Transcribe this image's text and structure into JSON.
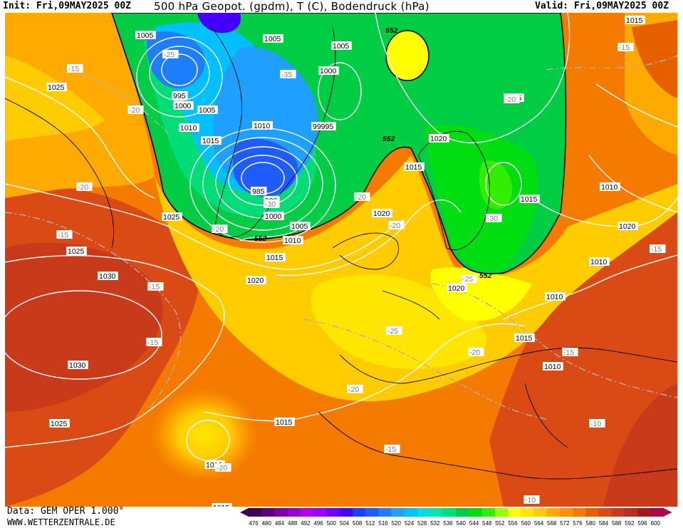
{
  "header": {
    "init": "Init: Fri,09MAY2025 00Z",
    "title": "500 hPa Geopot. (gpdm), T (C), Bodendruck (hPa)",
    "valid": "Valid: Fri,09MAY2025 00Z"
  },
  "footer": {
    "source": "Data: GEM OPER 1.000°",
    "site": "WWW.WETTERZENTRALE.DE"
  },
  "colorbar": {
    "labels": [
      "476",
      "480",
      "484",
      "488",
      "492",
      "496",
      "500",
      "504",
      "508",
      "512",
      "516",
      "520",
      "524",
      "528",
      "532",
      "536",
      "540",
      "544",
      "548",
      "552",
      "556",
      "560",
      "564",
      "568",
      "572",
      "576",
      "580",
      "584",
      "588",
      "592",
      "596",
      "600"
    ],
    "colors": [
      "#3d0055",
      "#5c0080",
      "#7a00a8",
      "#9900cc",
      "#b300e6",
      "#9a00ff",
      "#7000ff",
      "#4400ff",
      "#1f3dff",
      "#1e5cff",
      "#1f7dff",
      "#1f9fff",
      "#00c0ff",
      "#00dddd",
      "#00e6a8",
      "#00dd77",
      "#00cc44",
      "#00dd11",
      "#33ee00",
      "#99ff00",
      "#ffff00",
      "#ffe600",
      "#ffcc00",
      "#ffaa00",
      "#ff9100",
      "#f57a00",
      "#e66000",
      "#d94a15",
      "#c93a1a",
      "#b52e20",
      "#9e1a20",
      "#b0004a"
    ]
  },
  "map_labels": {
    "pressure": [
      "1005",
      "1005",
      "1005",
      "1025",
      "1010",
      "1005",
      "995",
      "1000",
      "1005",
      "1010",
      "1015",
      "1000",
      "99995",
      "1010",
      "985",
      "990",
      "1000",
      "1005",
      "1010",
      "1015",
      "1020",
      "1025",
      "1020",
      "1015",
      "1020",
      "1015",
      "1020",
      "1015",
      "1010",
      "1015",
      "1010",
      "1025",
      "1030",
      "1030",
      "1025",
      "1015",
      "1010",
      "1010",
      "1015",
      "1010",
      "1015",
      "1015",
      "1015",
      "1010",
      "1020",
      "1005"
    ],
    "temperature": [
      "-25",
      "-15",
      "-20",
      "-35",
      "-20",
      "-15",
      "-30",
      "-20",
      "-20",
      "-20",
      "-20",
      "-20",
      "-25",
      "-15",
      "-15",
      "-15",
      "-25",
      "-20",
      "-20",
      "-15",
      "-15",
      "-10",
      "-15",
      "-10",
      "-30",
      "-20",
      "-15"
    ],
    "geopotential": [
      "552",
      "552",
      "552",
      "552"
    ]
  }
}
